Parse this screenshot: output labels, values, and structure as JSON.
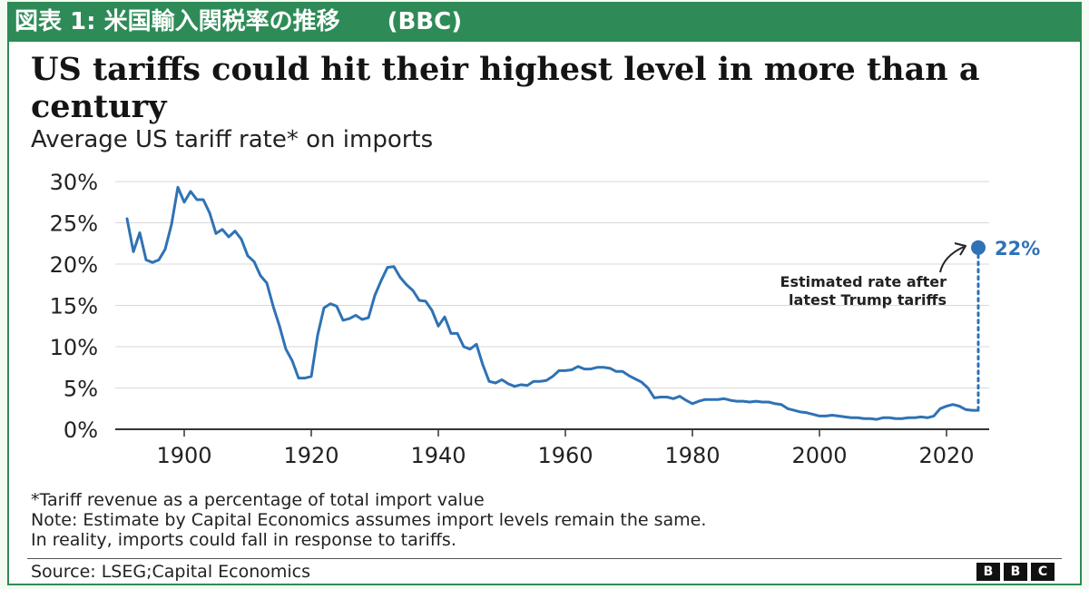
{
  "banner": "図表 1: 米国輸入関税率の推移　　(BBC)",
  "title": "US tariffs could hit their highest level in more than a century",
  "subtitle": "Average US tariff rate* on imports",
  "notes": [
    "*Tariff revenue as a percentage of total import value",
    "Note: Estimate by Capital Economics assumes import levels remain the same.",
    "In reality, imports could fall in response to tariffs."
  ],
  "source": "Source: LSEG;Capital Economics",
  "logo_letters": [
    "B",
    "B",
    "C"
  ],
  "colors": {
    "banner": "#2e8b57",
    "line": "#2f72b5",
    "axis": "#333333",
    "grid": "#d9d9d9"
  },
  "chart_data": {
    "type": "line",
    "title": "US tariffs could hit their highest level in more than a century",
    "subtitle": "Average US tariff rate* on imports",
    "xlim": [
      1891,
      2025
    ],
    "ylim": [
      0,
      30
    ],
    "x_ticks": [
      1900,
      1920,
      1940,
      1960,
      1980,
      2000,
      2020
    ],
    "y_ticks": [
      0,
      5,
      10,
      15,
      20,
      25,
      30
    ],
    "y_tick_labels": [
      "0%",
      "5%",
      "10%",
      "15%",
      "20%",
      "25%",
      "30%"
    ],
    "grid": "horizontal",
    "series": [
      {
        "x": [
          1891,
          1892,
          1893,
          1894,
          1895,
          1896,
          1897,
          1898,
          1899,
          1900,
          1901,
          1902,
          1903,
          1904,
          1905,
          1906,
          1907,
          1908,
          1909,
          1910,
          1911,
          1912,
          1913,
          1914,
          1915,
          1916,
          1917,
          1918,
          1919,
          1920,
          1921,
          1922,
          1923,
          1924,
          1925,
          1926,
          1927,
          1928,
          1929,
          1930,
          1931,
          1932,
          1933,
          1934,
          1935,
          1936,
          1937,
          1938,
          1939,
          1940,
          1941,
          1942,
          1943,
          1944,
          1945,
          1946,
          1947,
          1948,
          1949,
          1950,
          1951,
          1952,
          1953,
          1954,
          1955,
          1956,
          1957,
          1958,
          1959,
          1960,
          1961,
          1962,
          1963,
          1964,
          1965,
          1966,
          1967,
          1968,
          1969,
          1970,
          1971,
          1972,
          1973,
          1974,
          1975,
          1976,
          1977,
          1978,
          1979,
          1980,
          1981,
          1982,
          1983,
          1984,
          1985,
          1986,
          1987,
          1988,
          1989,
          1990,
          1991,
          1992,
          1993,
          1994,
          1995,
          1996,
          1997,
          1998,
          1999,
          2000,
          2001,
          2002,
          2003,
          2004,
          2005,
          2006,
          2007,
          2008,
          2009,
          2010,
          2011,
          2012,
          2013,
          2014,
          2015,
          2016,
          2017,
          2018,
          2019,
          2020,
          2021,
          2022,
          2023,
          2024
        ],
        "values": [
          25.5,
          21.5,
          23.8,
          20.5,
          20.2,
          20.5,
          21.8,
          24.8,
          29.3,
          27.5,
          28.8,
          27.8,
          27.8,
          26.2,
          23.7,
          24.2,
          23.3,
          24,
          23,
          21,
          20.3,
          18.6,
          17.7,
          14.9,
          12.5,
          9.7,
          8.3,
          6.2,
          6.2,
          6.4,
          11.4,
          14.7,
          15.2,
          14.9,
          13.2,
          13.4,
          13.8,
          13.3,
          13.5,
          16.2,
          18,
          19.6,
          19.7,
          18.4,
          17.5,
          16.8,
          15.6,
          15.5,
          14.4,
          12.5,
          13.6,
          11.6,
          11.6,
          10.0,
          9.7,
          10.3,
          7.8,
          5.8,
          5.6,
          6.0,
          5.5,
          5.2,
          5.4,
          5.3,
          5.8,
          5.8,
          5.9,
          6.4,
          7.1,
          7.1,
          7.2,
          7.6,
          7.3,
          7.3,
          7.5,
          7.5,
          7.4,
          7.0,
          7.0,
          6.5,
          6.1,
          5.7,
          5.0,
          3.8,
          3.9,
          3.9,
          3.7,
          4.0,
          3.5,
          3.1,
          3.4,
          3.6,
          3.6,
          3.6,
          3.7,
          3.5,
          3.4,
          3.4,
          3.3,
          3.4,
          3.3,
          3.3,
          3.1,
          3.0,
          2.5,
          2.3,
          2.1,
          2.0,
          1.8,
          1.6,
          1.6,
          1.7,
          1.6,
          1.5,
          1.4,
          1.4,
          1.3,
          1.3,
          1.2,
          1.4,
          1.4,
          1.3,
          1.3,
          1.4,
          1.4,
          1.5,
          1.4,
          1.6,
          2.5,
          2.8,
          3.0,
          2.8,
          2.4,
          2.3
        ]
      }
    ],
    "annotation": {
      "year": 2025,
      "value": 22,
      "label": "22%",
      "text_lines": [
        "Estimated rate after",
        "latest Trump tariffs"
      ]
    }
  }
}
